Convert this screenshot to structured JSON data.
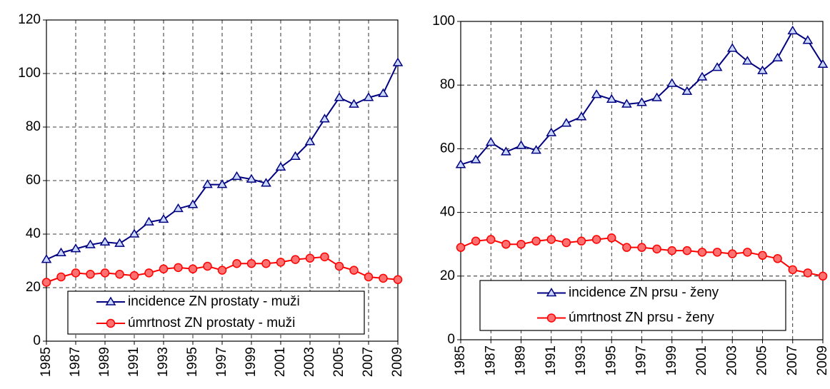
{
  "chart_data": [
    {
      "type": "line",
      "x": [
        1985,
        1986,
        1987,
        1988,
        1989,
        1990,
        1991,
        1992,
        1993,
        1994,
        1995,
        1996,
        1997,
        1998,
        1999,
        2000,
        2001,
        2002,
        2003,
        2004,
        2005,
        2006,
        2007,
        2008,
        2009
      ],
      "series": [
        {
          "name": "incidence ZN prostaty - muži",
          "color": "#000080",
          "marker": "triangle",
          "values": [
            30.5,
            33,
            34.5,
            36,
            37,
            36.5,
            40,
            44.5,
            45.5,
            49.5,
            51,
            58.5,
            58.5,
            61.5,
            60.5,
            59,
            65,
            69,
            74.5,
            83,
            91,
            88.5,
            91,
            92.5,
            104
          ]
        },
        {
          "name": "úmrtnost ZN prostaty - muži",
          "color": "#ff0000",
          "marker": "circle",
          "values": [
            22,
            24,
            25.5,
            25,
            25.5,
            25,
            24.5,
            25.5,
            27,
            27.5,
            27,
            28,
            26.5,
            29,
            29,
            29,
            29.5,
            30.5,
            31,
            31.5,
            28,
            26.5,
            24,
            23.5,
            23
          ]
        }
      ],
      "xlim": [
        1985,
        2009
      ],
      "xticks": [
        1985,
        1987,
        1989,
        1991,
        1993,
        1995,
        1997,
        1999,
        2001,
        2003,
        2005,
        2007,
        2009
      ],
      "ylim": [
        0,
        120
      ],
      "yticks": [
        0,
        20,
        40,
        60,
        80,
        100,
        120
      ],
      "grid": true,
      "legend": "bottom"
    },
    {
      "type": "line",
      "x": [
        1985,
        1986,
        1987,
        1988,
        1989,
        1990,
        1991,
        1992,
        1993,
        1994,
        1995,
        1996,
        1997,
        1998,
        1999,
        2000,
        2001,
        2002,
        2003,
        2004,
        2005,
        2006,
        2007,
        2008,
        2009
      ],
      "series": [
        {
          "name": "incidence ZN prsu - ženy",
          "color": "#000080",
          "marker": "triangle",
          "values": [
            55,
            56.5,
            62,
            59,
            61,
            59.5,
            65,
            68,
            70,
            77,
            75.5,
            74,
            74.5,
            76,
            80.5,
            78,
            82.5,
            85.5,
            91.5,
            87.5,
            84.5,
            88.5,
            97,
            94,
            86.5
          ]
        },
        {
          "name": "úmrtnost ZN prsu - ženy",
          "color": "#ff0000",
          "marker": "circle",
          "values": [
            29,
            31,
            31.5,
            30,
            30,
            31,
            31.5,
            30.5,
            31,
            31.5,
            32,
            29,
            29,
            28.5,
            28,
            28,
            27.5,
            27.5,
            27,
            27.5,
            26.5,
            25.5,
            22,
            21,
            20
          ]
        }
      ],
      "xlim": [
        1985,
        2009
      ],
      "xticks": [
        1985,
        1987,
        1989,
        1991,
        1993,
        1995,
        1997,
        1999,
        2001,
        2003,
        2005,
        2007,
        2009
      ],
      "ylim": [
        0,
        100
      ],
      "yticks": [
        0,
        20,
        40,
        60,
        80,
        100
      ],
      "grid": true,
      "legend": "bottom"
    }
  ]
}
